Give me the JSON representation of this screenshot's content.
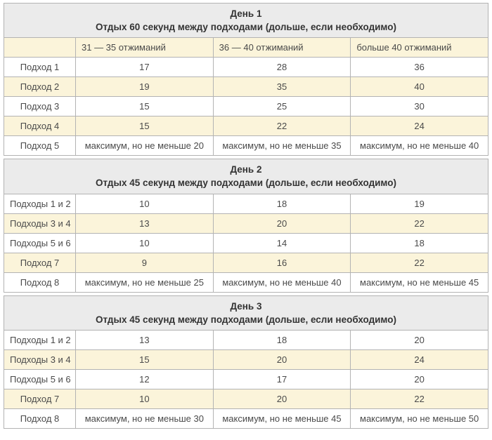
{
  "colors": {
    "day_header_bg": "#ebebeb",
    "stripe_bg": "#fbf4da",
    "row_bg": "#ffffff",
    "border": "#b3b3b3",
    "text": "#4a4a4a",
    "header_text": "#333333"
  },
  "tables": [
    {
      "day": "День 1",
      "subtitle": "Отдых 60 секунд между подходами (дольше, если необходимо)",
      "columns": [
        "31 — 35 отжиманий",
        "36 — 40 отжиманий",
        "больше 40 отжиманий"
      ],
      "rows": [
        {
          "label": "Подход 1",
          "values": [
            "17",
            "28",
            "36"
          ]
        },
        {
          "label": "Подход 2",
          "values": [
            "19",
            "35",
            "40"
          ]
        },
        {
          "label": "Подход 3",
          "values": [
            "15",
            "25",
            "30"
          ]
        },
        {
          "label": "Подход 4",
          "values": [
            "15",
            "22",
            "24"
          ]
        },
        {
          "label": "Подход 5",
          "values": [
            "максимум, но не меньше 20",
            "максимум, но не меньше 35",
            "максимум, но не меньше 40"
          ]
        }
      ]
    },
    {
      "day": "День 2",
      "subtitle": "Отдых 45 секунд между подходами (дольше, если необходимо)",
      "rows": [
        {
          "label": "Подходы 1 и 2",
          "values": [
            "10",
            "18",
            "19"
          ]
        },
        {
          "label": "Подходы 3 и 4",
          "values": [
            "13",
            "20",
            "22"
          ]
        },
        {
          "label": "Подходы 5 и 6",
          "values": [
            "10",
            "14",
            "18"
          ]
        },
        {
          "label": "Подход 7",
          "values": [
            "9",
            "16",
            "22"
          ]
        },
        {
          "label": "Подход 8",
          "values": [
            "максимум, но не меньше 25",
            "максимум, но не меньше 40",
            "максимум, но не меньше 45"
          ]
        }
      ]
    },
    {
      "day": "День 3",
      "subtitle": "Отдых 45 секунд между подходами (дольше, если необходимо)",
      "rows": [
        {
          "label": "Подходы 1 и 2",
          "values": [
            "13",
            "18",
            "20"
          ]
        },
        {
          "label": "Подходы 3 и 4",
          "values": [
            "15",
            "20",
            "24"
          ]
        },
        {
          "label": "Подходы 5 и 6",
          "values": [
            "12",
            "17",
            "20"
          ]
        },
        {
          "label": "Подход 7",
          "values": [
            "10",
            "20",
            "22"
          ]
        },
        {
          "label": "Подход 8",
          "values": [
            "максимум, но не меньше 30",
            "максимум, но не меньше 45",
            "максимум, но не меньше 50"
          ]
        }
      ]
    }
  ]
}
